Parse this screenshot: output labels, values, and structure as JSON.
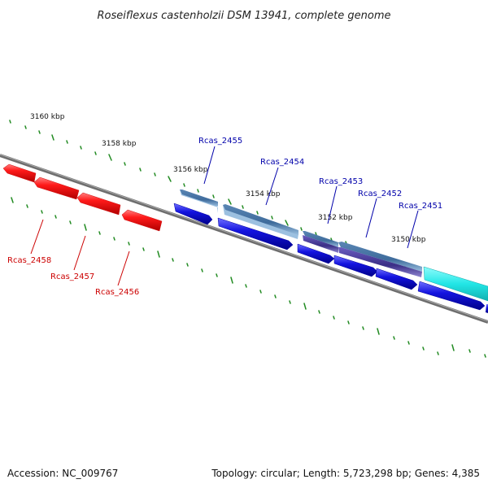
{
  "title": "Roseiflexus castenholzii DSM 13941, complete genome",
  "footer": {
    "accession": "Accession: NC_009767",
    "summary": "Topology: circular; Length: 5,723,298 bp; Genes: 4,385"
  },
  "colors": {
    "backbone": "#777777",
    "tick": "#228b22",
    "red_gene": "#ff1a1a",
    "blue_gene": "#1414e0",
    "steel_gene": "#4f7fb0",
    "purple_gene": "#4a3c9a",
    "cyan_gene": "#22e0e0",
    "red_label": "#cc0000",
    "blue_label": "#0000aa"
  },
  "kbp_labels": [
    "3160 kbp",
    "3158 kbp",
    "3156 kbp",
    "3154 kbp",
    "3152 kbp",
    "3150 kbp"
  ],
  "gene_labels": {
    "top": [
      "Rcas_2455",
      "Rcas_2454",
      "Rcas_2453",
      "Rcas_2452",
      "Rcas_2451"
    ],
    "bottom": [
      "Rcas_2458",
      "Rcas_2457",
      "Rcas_2456"
    ]
  }
}
